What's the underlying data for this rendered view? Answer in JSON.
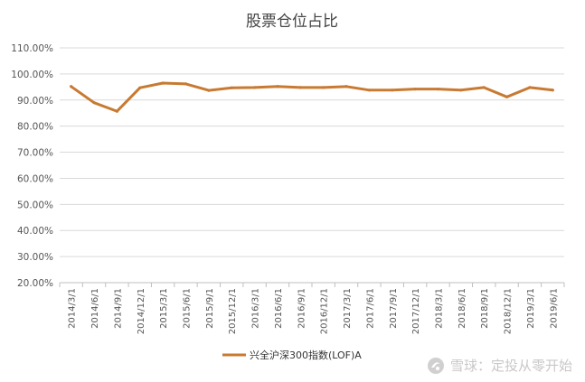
{
  "chart_data": {
    "type": "line",
    "title": "股票仓位占比",
    "xlabel": "",
    "ylabel": "",
    "ylim": [
      0.2,
      1.1
    ],
    "y_ticks": [
      "20.00%",
      "30.00%",
      "40.00%",
      "50.00%",
      "60.00%",
      "70.00%",
      "80.00%",
      "90.00%",
      "100.00%",
      "110.00%"
    ],
    "categories": [
      "2014/3/1",
      "2014/6/1",
      "2014/9/1",
      "2014/12/1",
      "2015/3/1",
      "2015/6/1",
      "2015/9/1",
      "2015/12/1",
      "2016/3/1",
      "2016/6/1",
      "2016/9/1",
      "2016/12/1",
      "2017/3/1",
      "2017/6/1",
      "2017/9/1",
      "2017/12/1",
      "2018/3/1",
      "2018/6/1",
      "2018/9/1",
      "2018/12/1",
      "2019/3/1",
      "2019/6/1"
    ],
    "series": [
      {
        "name": "兴全沪深300指数(LOF)A",
        "color": "#c87a32",
        "values": [
          0.952,
          0.89,
          0.857,
          0.947,
          0.965,
          0.962,
          0.937,
          0.947,
          0.948,
          0.952,
          0.948,
          0.948,
          0.952,
          0.938,
          0.938,
          0.942,
          0.942,
          0.938,
          0.948,
          0.912,
          0.948,
          0.938
        ]
      }
    ],
    "grid": true,
    "legend_position": "bottom"
  },
  "watermark": {
    "text": "雪球：定投从零开始",
    "icon": "snowball-logo-icon"
  }
}
